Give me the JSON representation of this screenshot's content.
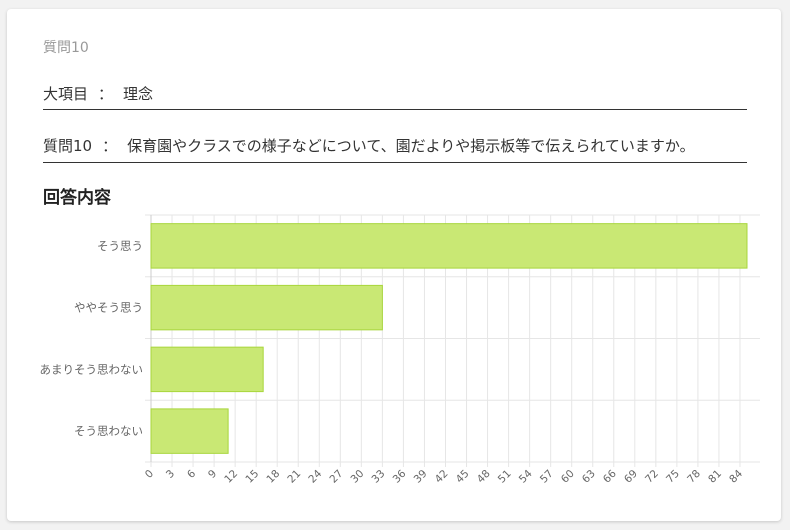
{
  "question_number": "質問10",
  "category": {
    "label": "大項目",
    "separator": "：",
    "value": "理念"
  },
  "question": {
    "label": "質問10",
    "separator": "：",
    "text": "保育園やクラスでの様子などについて、園だよりや掲示板等で伝えられていますか。"
  },
  "section_title": "回答内容",
  "colors": {
    "bar_fill": "#c9e874",
    "bar_stroke": "#a8d63c",
    "grid": "#e6e6e6"
  },
  "chart_data": {
    "type": "bar",
    "orientation": "horizontal",
    "categories": [
      "そう思う",
      "ややそう思う",
      "あまりそう思わない",
      "そう思わない"
    ],
    "values": [
      85,
      33,
      16,
      11
    ],
    "xlim": [
      0,
      86
    ],
    "x_ticks": [
      0,
      3,
      6,
      9,
      12,
      15,
      18,
      21,
      24,
      27,
      30,
      33,
      36,
      39,
      42,
      45,
      48,
      51,
      54,
      57,
      60,
      63,
      66,
      69,
      72,
      75,
      78,
      81,
      84
    ],
    "grid": true,
    "legend": "none"
  }
}
